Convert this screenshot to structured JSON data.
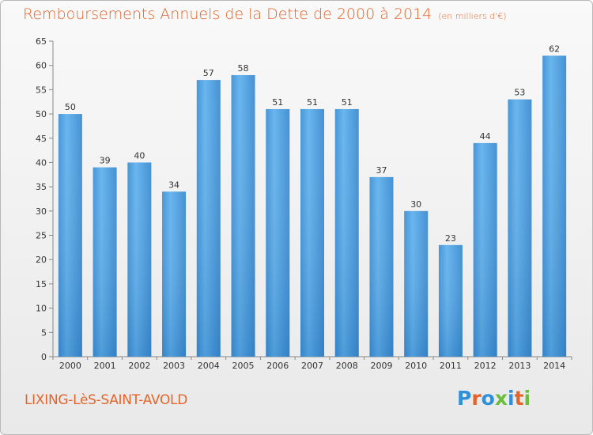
{
  "header": {
    "title": "Remboursements Annuels de la Dette de 2000 à 2014",
    "subtitle": "(en milliers d'€)"
  },
  "footer": {
    "commune": "LIXING-LèS-SAINT-AVOLD",
    "logo_text": "Proxiti",
    "logo_colors": [
      "#2f8fd8",
      "#e3652c",
      "#2f8fd8",
      "#6bbf3a",
      "#2f8fd8",
      "#e3652c",
      "#6bbf3a"
    ]
  },
  "colors": {
    "bar": "#4a9fe0",
    "bar_light": "#5dafed",
    "bar_dark": "#2f7fc4",
    "accent": "#e3652c"
  },
  "chart_data": {
    "type": "bar",
    "categories": [
      "2000",
      "2001",
      "2002",
      "2003",
      "2004",
      "2005",
      "2006",
      "2007",
      "2008",
      "2009",
      "2010",
      "2011",
      "2012",
      "2013",
      "2014"
    ],
    "values": [
      50,
      39,
      40,
      34,
      57,
      58,
      51,
      51,
      51,
      37,
      30,
      23,
      44,
      53,
      62
    ],
    "ylim": [
      0,
      65
    ],
    "yticks": [
      0,
      5,
      10,
      15,
      20,
      25,
      30,
      35,
      40,
      45,
      50,
      55,
      60,
      65
    ],
    "grid": false,
    "data_labels": true
  }
}
